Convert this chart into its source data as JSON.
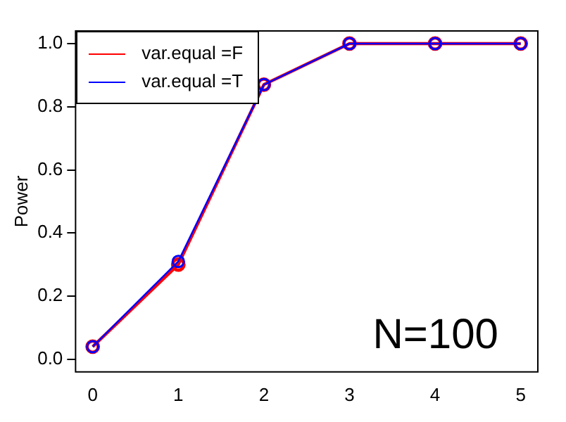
{
  "chart_data": {
    "type": "line",
    "ylabel": "Power",
    "x": [
      0,
      1,
      2,
      3,
      4,
      5
    ],
    "series": [
      {
        "name": "var.equal =F",
        "color": "#ff0000",
        "values": [
          0.04,
          0.3,
          0.87,
          1.0,
          1.0,
          1.0
        ]
      },
      {
        "name": "var.equal =T",
        "color": "#0000ff",
        "values": [
          0.04,
          0.31,
          0.87,
          1.0,
          1.0,
          1.0
        ]
      }
    ],
    "xlim": [
      -0.2,
      5.2
    ],
    "xticks": [
      0,
      1,
      2,
      3,
      4,
      5
    ],
    "ylim": [
      -0.04,
      1.04
    ],
    "yticks": [
      {
        "value": 0,
        "label": "0.0"
      },
      0.2,
      0.4,
      0.6,
      0.8,
      {
        "value": 1,
        "label": "1.0"
      }
    ],
    "annotations": [
      "N=100"
    ],
    "legend": "top left",
    "marker": "circle",
    "line_style": "solid",
    "grid": false
  }
}
